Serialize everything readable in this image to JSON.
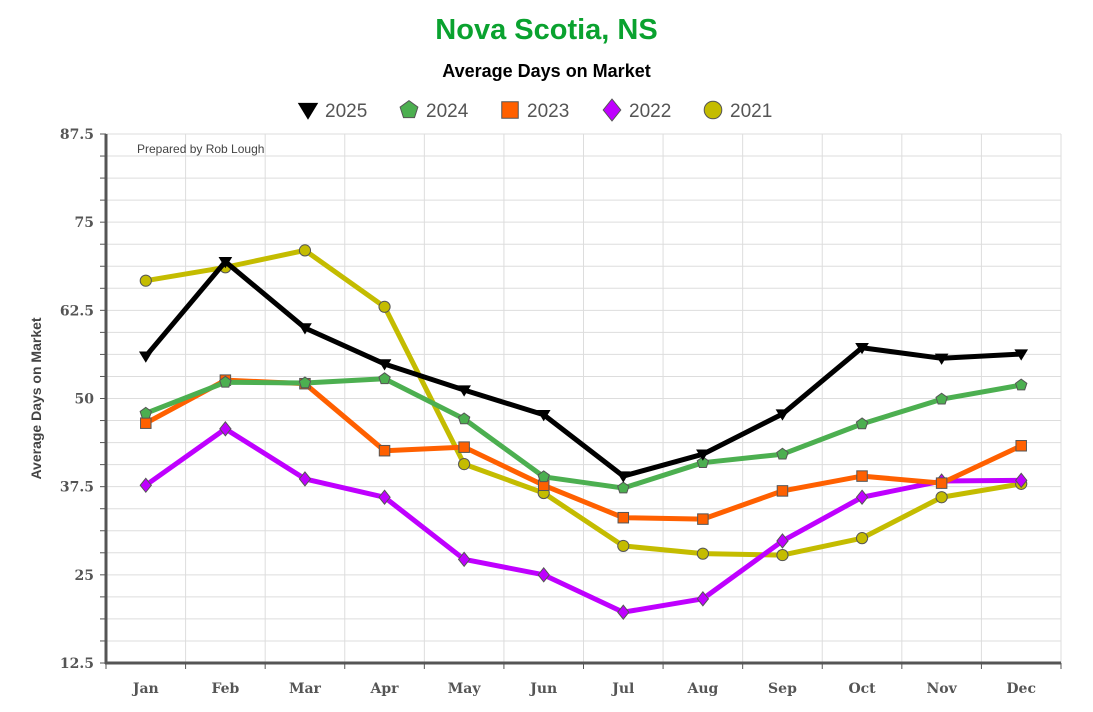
{
  "chart_data": {
    "type": "line",
    "title": "Nova Scotia, NS",
    "subtitle": "Average Days on Market",
    "ylabel": "Average Days on Market",
    "xlabel": "",
    "annotation": "Prepared by Rob Lough",
    "ylim": [
      12.5,
      87.5
    ],
    "yticks": [
      12.5,
      25,
      37.5,
      50,
      62.5,
      75,
      87.5
    ],
    "ytick_labels": [
      "12.5",
      "25",
      "37.5",
      "50",
      "62.5",
      "75",
      "87.5"
    ],
    "grid": true,
    "legend_position": "top",
    "categories": [
      "Jan",
      "Feb",
      "Mar",
      "Apr",
      "May",
      "Jun",
      "Jul",
      "Aug",
      "Sep",
      "Oct",
      "Nov",
      "Dec"
    ],
    "series": [
      {
        "name": "2025",
        "color": "#000000",
        "marker": "triangle-down",
        "values": [
          56.0,
          69.4,
          60.0,
          54.9,
          51.2,
          47.7,
          39.0,
          42.1,
          47.8,
          57.2,
          55.7,
          56.3
        ]
      },
      {
        "name": "2024",
        "color": "#4caf50",
        "marker": "pentagon",
        "values": [
          47.9,
          52.3,
          52.2,
          52.8,
          47.1,
          38.9,
          37.3,
          40.9,
          42.1,
          46.4,
          49.9,
          51.9
        ]
      },
      {
        "name": "2023",
        "color": "#ff6000",
        "marker": "square",
        "values": [
          46.5,
          52.6,
          52.1,
          42.6,
          43.1,
          37.7,
          33.1,
          32.9,
          36.9,
          39.0,
          38.0,
          43.3
        ]
      },
      {
        "name": "2022",
        "color": "#bf00ff",
        "marker": "diamond",
        "values": [
          37.7,
          45.7,
          38.6,
          36.0,
          27.2,
          25.0,
          19.7,
          21.6,
          29.8,
          36.0,
          38.3,
          38.4
        ]
      },
      {
        "name": "2021",
        "color": "#c4bc00",
        "marker": "circle",
        "values": [
          66.7,
          68.6,
          71.0,
          63.0,
          40.7,
          36.6,
          29.1,
          28.0,
          27.8,
          30.2,
          36.0,
          37.9
        ]
      }
    ]
  }
}
